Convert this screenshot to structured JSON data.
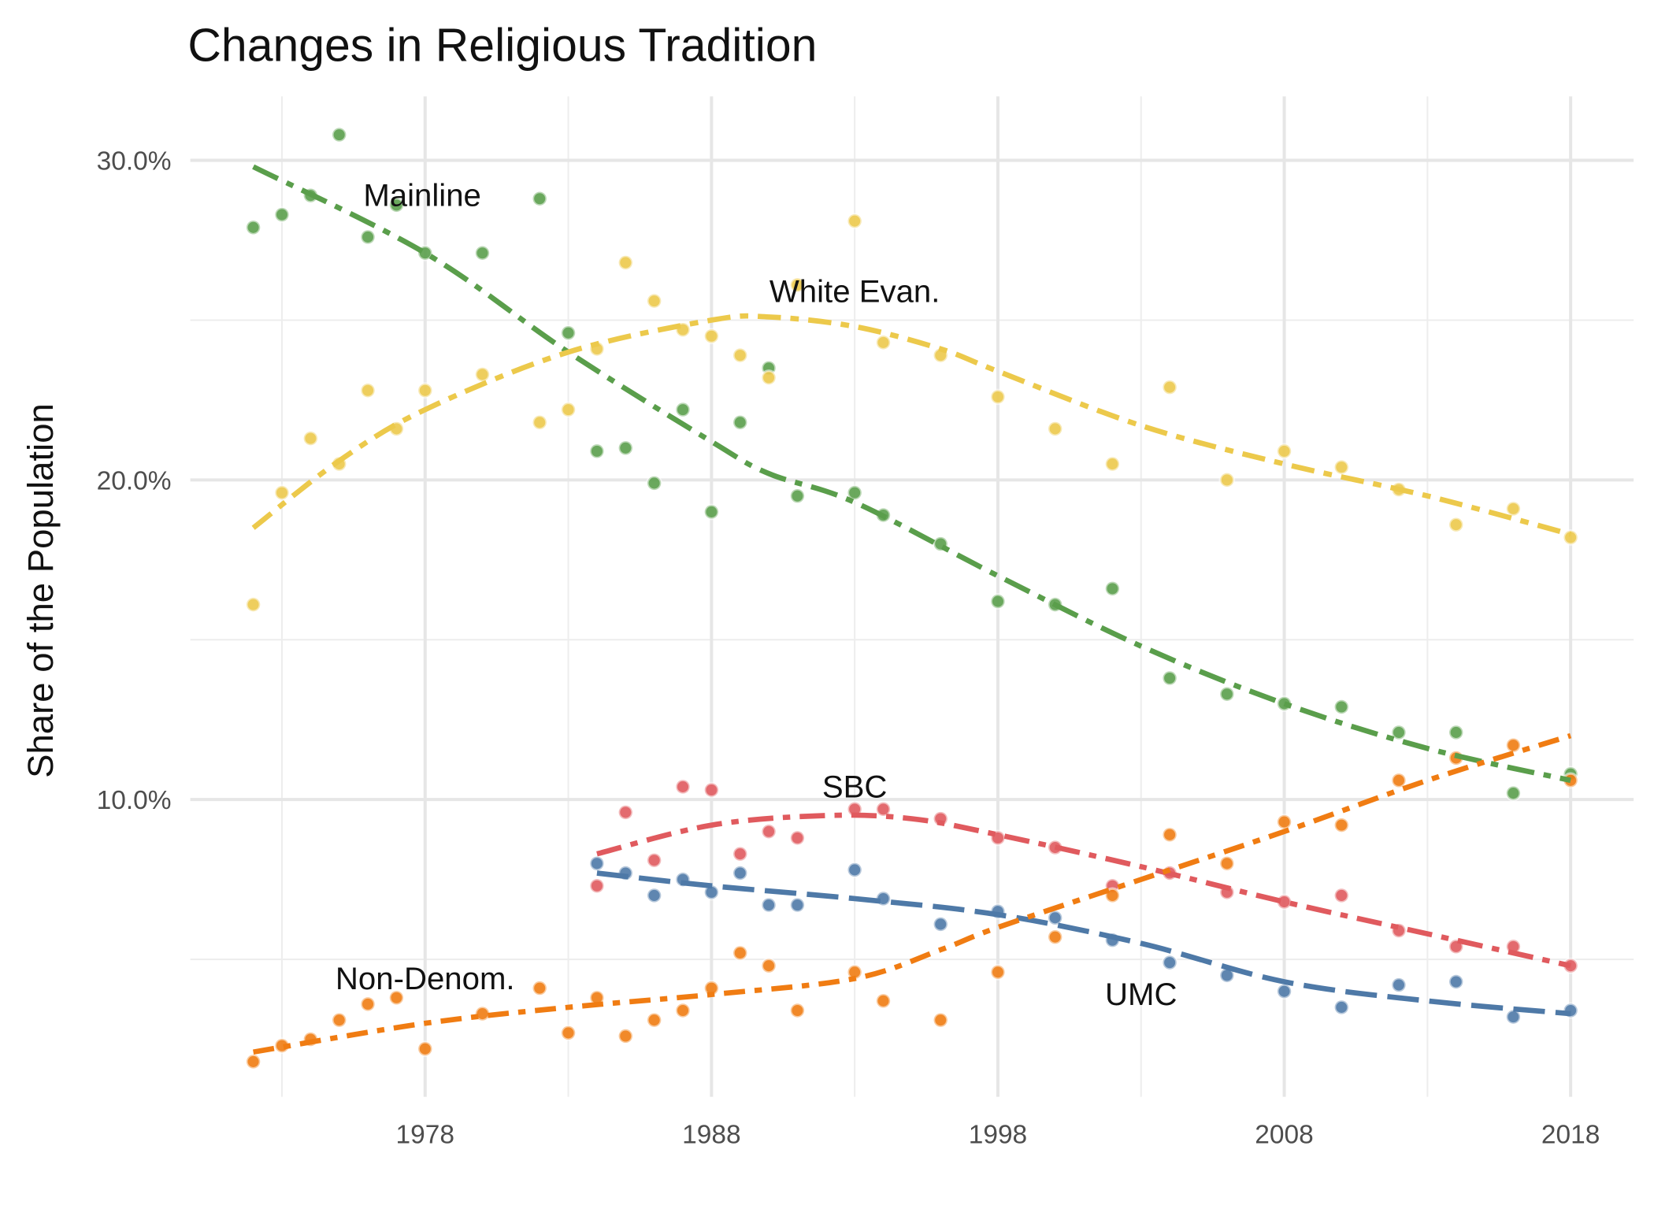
{
  "chart_data": {
    "type": "scatter",
    "title": "Changes in Religious Tradition",
    "ylabel": "Share of the Population",
    "xlim": [
      1969.8,
      2020.2
    ],
    "ylim": [
      0.7,
      32
    ],
    "xticks": [
      1978,
      1988,
      1998,
      2008,
      2018
    ],
    "xminor": [
      1973,
      1983,
      1993,
      2003,
      2013
    ],
    "yticks": [
      {
        "value": 10,
        "label": "10.0%"
      },
      {
        "value": 20,
        "label": "20.0%"
      },
      {
        "value": 30,
        "label": "30.0%"
      }
    ],
    "yminor": [
      5,
      15,
      25
    ],
    "grid": true,
    "series": [
      {
        "name": "Mainline",
        "color": "#5a9e4b",
        "label_at": [
          1977.9,
          28.9
        ],
        "x": [
          1972,
          1973,
          1974,
          1975,
          1976,
          1977,
          1978,
          1980,
          1982,
          1983,
          1984,
          1985,
          1986,
          1987,
          1988,
          1989,
          1990,
          1991,
          1993,
          1994,
          1996,
          1998,
          2000,
          2002,
          2004,
          2006,
          2008,
          2010,
          2012,
          2014,
          2016,
          2018
        ],
        "values": [
          27.9,
          28.3,
          28.9,
          30.8,
          27.6,
          28.6,
          27.1,
          27.1,
          28.8,
          24.6,
          20.9,
          21.0,
          19.9,
          22.2,
          19.0,
          21.8,
          23.5,
          19.5,
          19.6,
          18.9,
          18.0,
          16.2,
          16.1,
          16.6,
          13.8,
          13.3,
          13.0,
          12.9,
          12.1,
          12.1,
          10.2,
          10.8
        ],
        "trend": {
          "x": [
            1972,
            1978,
            1983,
            1988,
            1990,
            1993,
            1998,
            2003,
            2008,
            2013,
            2018
          ],
          "values": [
            29.8,
            27.1,
            24.0,
            21.2,
            20.2,
            19.3,
            17.0,
            14.8,
            13.0,
            11.6,
            10.6
          ]
        }
      },
      {
        "name": "White Evan.",
        "color": "#ecc94b",
        "label_at": [
          1993.0,
          25.9
        ],
        "x": [
          1972,
          1973,
          1974,
          1975,
          1976,
          1977,
          1978,
          1980,
          1982,
          1983,
          1984,
          1985,
          1986,
          1987,
          1988,
          1989,
          1990,
          1991,
          1993,
          1994,
          1996,
          1998,
          2000,
          2002,
          2004,
          2006,
          2008,
          2010,
          2012,
          2014,
          2016,
          2018
        ],
        "values": [
          16.1,
          19.6,
          21.3,
          20.5,
          22.8,
          21.6,
          22.8,
          23.3,
          21.8,
          22.2,
          24.1,
          26.8,
          25.6,
          24.7,
          24.5,
          23.9,
          23.2,
          26.1,
          28.1,
          24.3,
          23.9,
          22.6,
          21.6,
          20.5,
          22.9,
          20.0,
          20.9,
          20.4,
          19.7,
          18.6,
          19.1,
          18.2
        ],
        "trend": {
          "x": [
            1972,
            1975,
            1978,
            1983,
            1988,
            1990,
            1993,
            1996,
            1998,
            2003,
            2008,
            2013,
            2018
          ],
          "values": [
            18.5,
            20.6,
            22.2,
            24.0,
            25.0,
            25.1,
            24.8,
            24.1,
            23.4,
            21.7,
            20.5,
            19.5,
            18.3
          ]
        }
      },
      {
        "name": "SBC",
        "color": "#e05a5e",
        "label_at": [
          1993.0,
          10.4
        ],
        "x": [
          1984,
          1985,
          1986,
          1987,
          1988,
          1989,
          1990,
          1991,
          1993,
          1994,
          1996,
          1998,
          2000,
          2002,
          2004,
          2006,
          2008,
          2010,
          2012,
          2014,
          2016,
          2018
        ],
        "values": [
          7.3,
          9.6,
          8.1,
          10.4,
          10.3,
          8.3,
          9.0,
          8.8,
          9.7,
          9.7,
          9.4,
          8.8,
          8.5,
          7.3,
          7.7,
          7.1,
          6.8,
          7.0,
          5.9,
          5.4,
          5.4,
          4.8
        ],
        "trend": {
          "x": [
            1984,
            1988,
            1992,
            1995,
            1998,
            2003,
            2008,
            2013,
            2018
          ],
          "values": [
            8.3,
            9.2,
            9.5,
            9.4,
            8.9,
            7.9,
            6.8,
            5.8,
            4.8
          ]
        }
      },
      {
        "name": "UMC",
        "color": "#4e79a7",
        "label_at": [
          2003.0,
          3.9
        ],
        "x": [
          1984,
          1985,
          1986,
          1987,
          1988,
          1989,
          1990,
          1991,
          1993,
          1994,
          1996,
          1998,
          2000,
          2002,
          2004,
          2006,
          2008,
          2010,
          2012,
          2014,
          2016,
          2018
        ],
        "values": [
          8.0,
          7.7,
          7.0,
          7.5,
          7.1,
          7.7,
          6.7,
          6.7,
          7.8,
          6.9,
          6.1,
          6.5,
          6.3,
          5.6,
          4.9,
          4.5,
          4.0,
          3.5,
          4.2,
          4.3,
          3.2,
          3.4
        ],
        "trend": {
          "x": [
            1984,
            1988,
            1993,
            1998,
            2003,
            2008,
            2013,
            2018
          ],
          "values": [
            7.7,
            7.3,
            6.9,
            6.4,
            5.5,
            4.3,
            3.7,
            3.3
          ]
        }
      },
      {
        "name": "Non-Denom.",
        "color": "#f07c12",
        "label_at": [
          1978.0,
          4.4
        ],
        "x": [
          1972,
          1973,
          1974,
          1975,
          1976,
          1977,
          1978,
          1980,
          1982,
          1983,
          1984,
          1985,
          1986,
          1987,
          1988,
          1989,
          1990,
          1991,
          1993,
          1994,
          1996,
          1998,
          2000,
          2002,
          2004,
          2006,
          2008,
          2010,
          2012,
          2014,
          2016,
          2018
        ],
        "values": [
          1.8,
          2.3,
          2.5,
          3.1,
          3.6,
          3.8,
          2.2,
          3.3,
          4.1,
          2.7,
          3.8,
          2.6,
          3.1,
          3.4,
          4.1,
          5.2,
          4.8,
          3.4,
          4.6,
          3.7,
          3.1,
          4.6,
          5.7,
          7.0,
          8.9,
          8.0,
          9.3,
          9.2,
          10.6,
          11.3,
          11.7,
          10.6
        ],
        "trend": {
          "x": [
            1972,
            1978,
            1983,
            1988,
            1993,
            1996,
            1998,
            2003,
            2008,
            2013,
            2018
          ],
          "values": [
            2.1,
            3.0,
            3.5,
            3.9,
            4.4,
            5.3,
            6.0,
            7.5,
            9.0,
            10.6,
            12.0
          ]
        }
      }
    ]
  }
}
